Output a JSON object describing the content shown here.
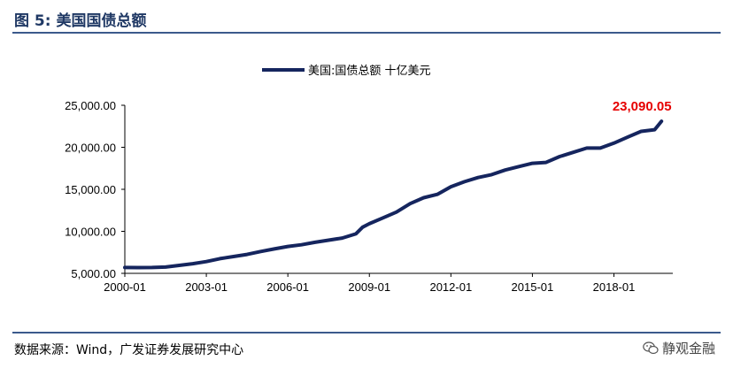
{
  "figure": {
    "title": "图 5:  美国国债总额"
  },
  "footer": {
    "source": "数据来源：Wind，广发证券发展研究中心",
    "watermark": "静观金融",
    "watermark_icon": "wechat-icon"
  },
  "chart_data": {
    "type": "line",
    "title": "",
    "xlabel": "",
    "ylabel": "",
    "grid": false,
    "legend": "top-center",
    "series": [
      {
        "name": "美国:国债总额 十亿美元",
        "color": "#15255e",
        "x": [
          "2000-01",
          "2000-07",
          "2001-01",
          "2001-07",
          "2002-01",
          "2002-07",
          "2003-01",
          "2003-07",
          "2004-01",
          "2004-07",
          "2005-01",
          "2005-07",
          "2006-01",
          "2006-07",
          "2007-01",
          "2007-07",
          "2008-01",
          "2008-07",
          "2008-10",
          "2009-01",
          "2009-07",
          "2010-01",
          "2010-07",
          "2011-01",
          "2011-07",
          "2012-01",
          "2012-07",
          "2013-01",
          "2013-07",
          "2014-01",
          "2014-07",
          "2015-01",
          "2015-07",
          "2016-01",
          "2016-07",
          "2017-01",
          "2017-07",
          "2018-01",
          "2018-07",
          "2019-01",
          "2019-07",
          "2019-10"
        ],
        "values": [
          5700,
          5680,
          5700,
          5750,
          5950,
          6150,
          6400,
          6750,
          7000,
          7250,
          7600,
          7900,
          8200,
          8400,
          8700,
          8950,
          9200,
          9700,
          10500,
          10900,
          11600,
          12300,
          13300,
          14000,
          14400,
          15300,
          15900,
          16400,
          16750,
          17300,
          17700,
          18100,
          18200,
          18900,
          19400,
          19900,
          19900,
          20500,
          21200,
          21900,
          22100,
          23090.05
        ]
      }
    ],
    "x_ticks": [
      "2000-01",
      "2003-01",
      "2006-01",
      "2009-01",
      "2012-01",
      "2015-01",
      "2018-01"
    ],
    "y_ticks": [
      "5,000.00",
      "10,000.00",
      "15,000.00",
      "20,000.00",
      "25,000.00"
    ],
    "ylim": [
      5000,
      25000
    ],
    "xlim": [
      "2000-01",
      "2020-03"
    ],
    "last_value_label": "23,090.05",
    "last_value_color": "#e60000"
  }
}
